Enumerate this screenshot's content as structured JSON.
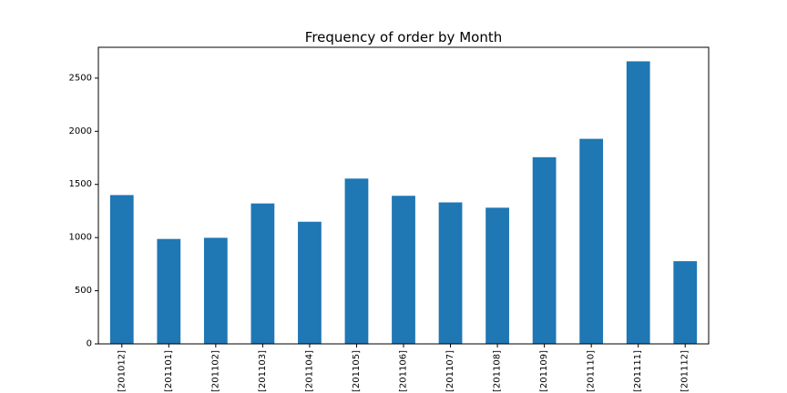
{
  "chart_data": {
    "type": "bar",
    "title": "Frequency of order by Month",
    "xlabel": "",
    "ylabel": "",
    "categories": [
      "[201012]",
      "[201101]",
      "[201102]",
      "[201103]",
      "[201104]",
      "[201105]",
      "[201106]",
      "[201107]",
      "[201108]",
      "[201109]",
      "[201110]",
      "[201111]",
      "[201112]"
    ],
    "values": [
      1400,
      987,
      998,
      1321,
      1149,
      1555,
      1393,
      1331,
      1281,
      1756,
      1929,
      2658,
      778
    ],
    "ylim": [
      0,
      2790
    ],
    "yticks": [
      0,
      500,
      1000,
      1500,
      2000,
      2500
    ],
    "grid": false,
    "bar_color": "#1f77b4"
  }
}
